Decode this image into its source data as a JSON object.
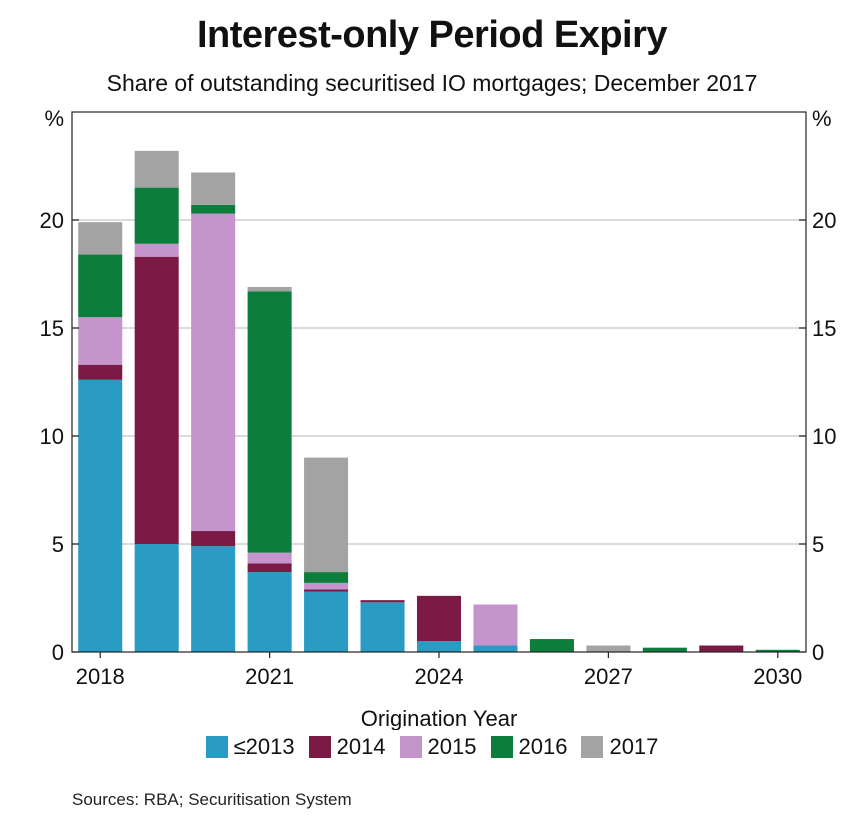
{
  "chart_data": {
    "type": "bar",
    "stacked": true,
    "title": "Interest-only Period Expiry",
    "subtitle": "Share of outstanding securitised IO mortgages; December 2017",
    "xlabel": "Origination Year",
    "ylabel_left": "%",
    "ylabel_right": "%",
    "ylim": [
      0,
      25
    ],
    "yticks": [
      0,
      5,
      10,
      15,
      20
    ],
    "grid": true,
    "legend_position": "bottom",
    "categories": [
      "2018",
      "2019",
      "2020",
      "2021",
      "2022",
      "2023",
      "2024",
      "2025",
      "2026",
      "2027",
      "2028",
      "2029",
      "2030"
    ],
    "x_tick_labels": [
      "2018",
      "2021",
      "2024",
      "2027",
      "2030"
    ],
    "series": [
      {
        "name": "≤2013",
        "color": "#2a9cc4",
        "values": [
          12.6,
          5.0,
          4.9,
          3.7,
          2.8,
          2.3,
          0.5,
          0.3,
          0.0,
          0.0,
          0.0,
          0.0,
          0.0
        ]
      },
      {
        "name": "2014",
        "color": "#7a1a45",
        "values": [
          0.7,
          13.3,
          0.7,
          0.4,
          0.1,
          0.1,
          2.1,
          0.0,
          0.0,
          0.0,
          0.0,
          0.3,
          0.0
        ]
      },
      {
        "name": "2015",
        "color": "#c594cc",
        "values": [
          2.2,
          0.6,
          14.7,
          0.5,
          0.3,
          0.0,
          0.0,
          1.9,
          0.0,
          0.0,
          0.0,
          0.0,
          0.0
        ]
      },
      {
        "name": "2016",
        "color": "#0d7d3c",
        "values": [
          2.9,
          2.6,
          0.4,
          12.1,
          0.5,
          0.0,
          0.0,
          0.0,
          0.6,
          0.0,
          0.2,
          0.0,
          0.1
        ]
      },
      {
        "name": "2017",
        "color": "#a3a3a3",
        "values": [
          1.5,
          1.7,
          1.5,
          0.2,
          5.3,
          0.0,
          0.0,
          0.0,
          0.0,
          0.3,
          0.0,
          0.0,
          0.0
        ]
      }
    ],
    "source": "Sources: RBA; Securitisation System"
  }
}
